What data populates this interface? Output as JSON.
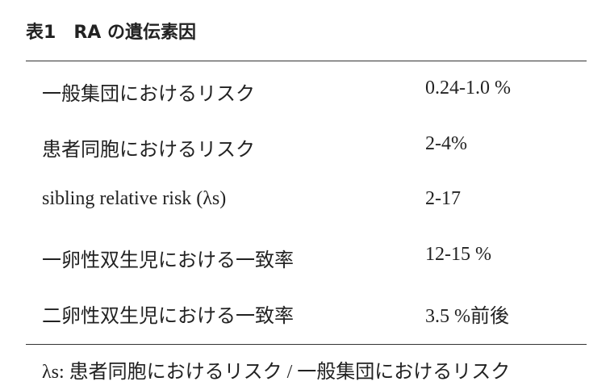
{
  "header": {
    "label": "表1",
    "title": "RA の遺伝素因"
  },
  "table": {
    "rows": [
      [
        "一般集団におけるリスク",
        "0.24-1.0 %"
      ],
      [
        "患者同胞におけるリスク",
        "2-4%"
      ],
      [
        "sibling relative risk (λs)",
        "2-17"
      ],
      [
        "一卵性双生児における一致率",
        "12-15 %"
      ],
      [
        "二卵性双生児における一致率",
        "3.5 %前後"
      ]
    ]
  },
  "footnote": "λs: 患者同胞におけるリスク / 一般集団におけるリスク"
}
